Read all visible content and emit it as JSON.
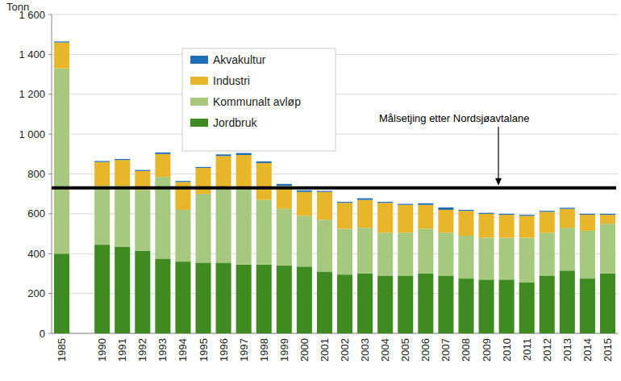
{
  "chart_data": {
    "type": "bar",
    "stacked": true,
    "grid": true,
    "legend": "top-left",
    "y_label": "Tonn",
    "annotations": [
      {
        "text": "Målsetjing etter Nordsjøavtalane",
        "value": 730
      }
    ],
    "categories": [
      "1985",
      null,
      "1990",
      "1991",
      "1992",
      "1993",
      "1994",
      "1995",
      "1996",
      "1997",
      "1998",
      "1999",
      "2000",
      "2001",
      "2002",
      "2003",
      "2004",
      "2005",
      "2006",
      "2007",
      "2008",
      "2009",
      "2010",
      "2011",
      "2012",
      "2013",
      "2014",
      "2015"
    ],
    "series": [
      {
        "name": "Jordbruk",
        "color": "#3f8a21",
        "values": [
          400,
          null,
          445,
          435,
          415,
          375,
          360,
          355,
          355,
          345,
          345,
          340,
          335,
          310,
          295,
          300,
          290,
          290,
          300,
          290,
          275,
          270,
          270,
          255,
          290,
          315,
          275,
          300
        ]
      },
      {
        "name": "Kommunalt avløp",
        "color": "#a6c97f",
        "values": [
          930,
          null,
          295,
          305,
          305,
          410,
          260,
          345,
          375,
          385,
          325,
          285,
          255,
          260,
          230,
          230,
          215,
          215,
          225,
          215,
          215,
          210,
          210,
          225,
          215,
          215,
          240,
          250
        ]
      },
      {
        "name": "Industri",
        "color": "#e8b62a",
        "values": [
          130,
          null,
          120,
          130,
          95,
          115,
          140,
          130,
          160,
          165,
          185,
          115,
          120,
          140,
          130,
          140,
          150,
          140,
          120,
          115,
          125,
          120,
          115,
          110,
          105,
          95,
          80,
          45
        ]
      },
      {
        "name": "Akvakultur",
        "color": "#1e6fb5",
        "values": [
          5,
          null,
          5,
          5,
          5,
          8,
          5,
          5,
          8,
          10,
          8,
          10,
          8,
          5,
          5,
          8,
          5,
          5,
          8,
          12,
          5,
          5,
          5,
          5,
          5,
          5,
          5,
          5
        ]
      }
    ],
    "ylim": [
      0,
      1600
    ],
    "yticks": [
      0,
      200,
      400,
      600,
      800,
      {
        "value": 1000,
        "label": "1 000"
      },
      {
        "value": 1200,
        "label": "1 200"
      },
      {
        "value": 1400,
        "label": "1 400"
      },
      {
        "value": 1600,
        "label": "1 600"
      }
    ]
  }
}
